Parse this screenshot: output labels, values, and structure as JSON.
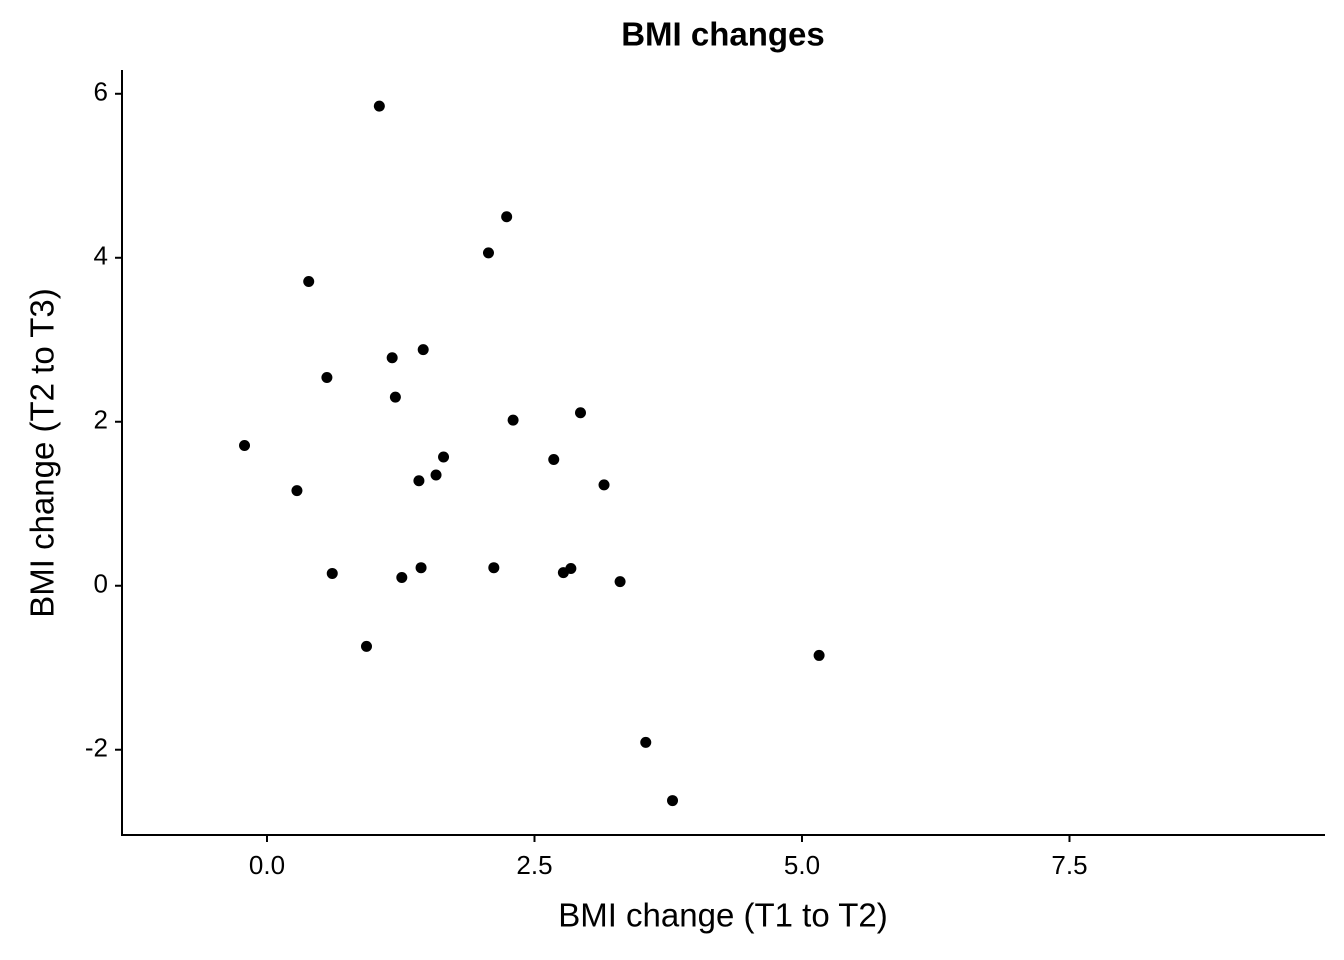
{
  "chart_data": {
    "type": "scatter",
    "title": "BMI changes",
    "x_label": "BMI change (T1 to T2)",
    "y_label": "BMI change (T2 to T3)",
    "color": "#000000",
    "x": [
      1.05,
      2.24,
      2.07,
      0.39,
      1.17,
      1.46,
      0.56,
      1.2,
      2.3,
      2.93,
      -0.21,
      1.65,
      2.68,
      1.58,
      1.42,
      3.15,
      0.28,
      0.61,
      1.26,
      1.44,
      2.12,
      2.77,
      2.84,
      3.3,
      0.93,
      5.16,
      3.54,
      3.79
    ],
    "values": [
      5.85,
      4.5,
      4.06,
      3.71,
      2.78,
      2.88,
      2.54,
      2.3,
      2.02,
      2.11,
      1.71,
      1.57,
      1.54,
      1.35,
      1.28,
      1.23,
      1.16,
      0.15,
      0.1,
      0.22,
      0.22,
      0.16,
      0.21,
      0.05,
      -0.74,
      -0.85,
      -1.91,
      -2.62
    ],
    "xlim": [
      -1.355,
      9.888
    ],
    "ylim": [
      -3.04,
      6.29
    ],
    "xticks": [
      {
        "value": 0,
        "label": "0.0"
      },
      2.5,
      {
        "value": 5,
        "label": "5.0"
      },
      7.5
    ],
    "yticks": [
      -2,
      0,
      2,
      4,
      6
    ]
  }
}
